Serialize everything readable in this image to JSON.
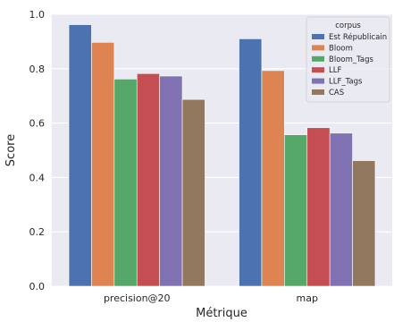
{
  "chart_data": {
    "type": "bar",
    "categories": [
      "precision@20",
      "map"
    ],
    "series": [
      {
        "name": "Est Républicain",
        "color": "#4c72b0",
        "values": [
          0.962,
          0.91
        ]
      },
      {
        "name": "Bloom",
        "color": "#dd8452",
        "values": [
          0.897,
          0.793
        ]
      },
      {
        "name": "Bloom_Tags",
        "color": "#55a868",
        "values": [
          0.762,
          0.557
        ]
      },
      {
        "name": "LLF",
        "color": "#c44e52",
        "values": [
          0.782,
          0.583
        ]
      },
      {
        "name": "LLF_Tags",
        "color": "#8172b3",
        "values": [
          0.773,
          0.563
        ]
      },
      {
        "name": "CAS",
        "color": "#937860",
        "values": [
          0.687,
          0.462
        ]
      }
    ],
    "title": "",
    "xlabel": "Métrique",
    "ylabel": "Score",
    "ylim": [
      0,
      1.0
    ],
    "yticks": [
      "0.0",
      "0.2",
      "0.4",
      "0.6",
      "0.8",
      "1.0"
    ],
    "grid": true,
    "legend": {
      "title": "corpus",
      "placement": "top-right"
    },
    "background": "#eaeaf2"
  }
}
